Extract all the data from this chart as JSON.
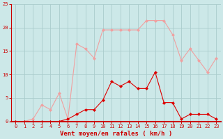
{
  "x": [
    0,
    1,
    2,
    3,
    4,
    5,
    6,
    7,
    8,
    9,
    10,
    11,
    12,
    13,
    14,
    15,
    16,
    17,
    18,
    19,
    20,
    21,
    22,
    23
  ],
  "rafales": [
    0,
    0,
    0.5,
    3.5,
    2.5,
    6,
    0.5,
    16.5,
    15.5,
    13.5,
    19.5,
    19.5,
    19.5,
    19.5,
    19.5,
    21.5,
    21.5,
    21.5,
    18.5,
    13,
    15.5,
    13,
    10.5,
    13.5
  ],
  "moyen": [
    0,
    0,
    0,
    0,
    0,
    0,
    0.5,
    1.5,
    2.5,
    2.5,
    4.5,
    8.5,
    7.5,
    8.5,
    7,
    7,
    10.5,
    4,
    4,
    0.5,
    1.5,
    1.5,
    1.5,
    0.5
  ],
  "rafales_color": "#f0a0a0",
  "moyen_color": "#dd0000",
  "bg_color": "#cce8e8",
  "grid_color": "#aacccc",
  "xlabel": "Vent moyen/en rafales ( km/h )",
  "xlim_min": -0.5,
  "xlim_max": 23.5,
  "ylim_min": 0,
  "ylim_max": 25,
  "yticks": [
    0,
    5,
    10,
    15,
    20,
    25
  ],
  "xticks": [
    0,
    1,
    2,
    3,
    4,
    5,
    6,
    7,
    8,
    9,
    10,
    11,
    12,
    13,
    14,
    15,
    16,
    17,
    18,
    19,
    20,
    21,
    22,
    23
  ],
  "marker": "D",
  "markersize": 2,
  "linewidth": 0.8,
  "xlabel_color": "#cc0000",
  "tick_color": "#cc0000",
  "tick_labelsize": 5,
  "xlabel_fontsize": 6.5,
  "spine_color": "#cc0000"
}
